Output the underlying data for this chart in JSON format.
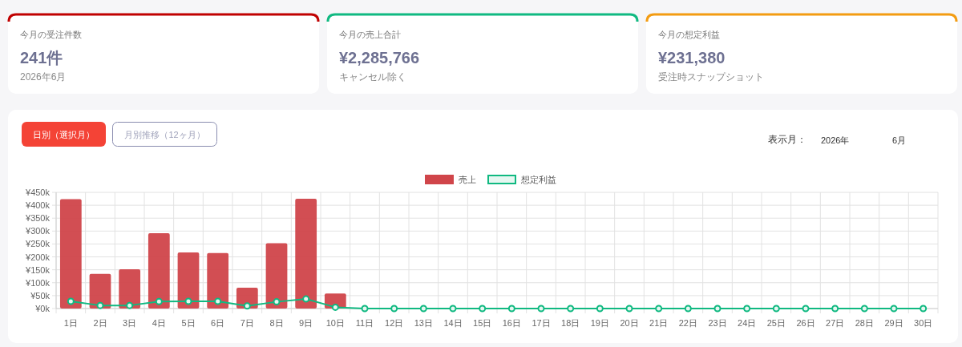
{
  "chart_data": [
    {
      "type": "other",
      "title": "今月の受注件数",
      "annotations": [
        "241件",
        "2026年6月"
      ]
    },
    {
      "type": "other",
      "title": "今月の売上合計",
      "annotations": [
        "¥2,285,766",
        "キャンセル除く"
      ]
    },
    {
      "type": "other",
      "title": "今月の想定利益",
      "annotations": [
        "¥231,380",
        "受注時スナップショット"
      ]
    },
    {
      "type": "bar",
      "categories": [
        "1日",
        "2日",
        "3日",
        "4日",
        "5日",
        "6日",
        "7日",
        "8日",
        "9日",
        "10日",
        "11日",
        "12日",
        "13日",
        "14日",
        "15日",
        "16日",
        "17日",
        "18日",
        "19日",
        "20日",
        "21日",
        "22日",
        "23日",
        "24日",
        "25日",
        "26日",
        "27日",
        "28日",
        "29日",
        "30日"
      ],
      "series": [
        {
          "name": "売上",
          "type": "bar",
          "color": "#d0454a",
          "values": [
            424000,
            134000,
            152000,
            292000,
            217000,
            215000,
            81000,
            253000,
            425000,
            58000,
            0,
            0,
            0,
            0,
            0,
            0,
            0,
            0,
            0,
            0,
            0,
            0,
            0,
            0,
            0,
            0,
            0,
            0,
            0,
            0
          ]
        },
        {
          "name": "想定利益",
          "type": "line",
          "color": "#10b981",
          "values": [
            28000,
            12000,
            12000,
            27000,
            28000,
            28000,
            10000,
            26000,
            37000,
            5000,
            0,
            0,
            0,
            0,
            0,
            0,
            0,
            0,
            0,
            0,
            0,
            0,
            0,
            0,
            0,
            0,
            0,
            0,
            0,
            0
          ]
        }
      ],
      "ylim": [
        0,
        450000
      ],
      "yticks": [
        {
          "value": 0,
          "label": "¥0k"
        },
        {
          "value": 50000,
          "label": "¥50k"
        },
        {
          "value": 100000,
          "label": "¥100k"
        },
        {
          "value": 150000,
          "label": "¥150k"
        },
        {
          "value": 200000,
          "label": "¥200k"
        },
        {
          "value": 250000,
          "label": "¥250k"
        },
        {
          "value": 300000,
          "label": "¥300k"
        },
        {
          "value": 350000,
          "label": "¥350k"
        },
        {
          "value": 400000,
          "label": "¥400k"
        },
        {
          "value": 450000,
          "label": "¥450k"
        }
      ],
      "grid": true,
      "legend": "top",
      "marker": "circle",
      "line_style": "solid",
      "annotations": [
        "日別（選択月）",
        "月別推移（12ヶ月）",
        "表示月：",
        "2026年",
        "6月"
      ]
    }
  ]
}
